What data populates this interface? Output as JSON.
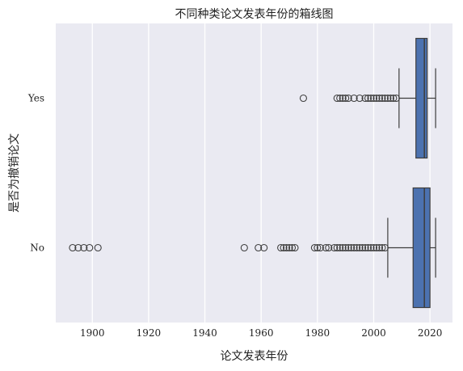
{
  "chart_data": {
    "type": "box",
    "orientation": "horizontal",
    "title": "不同种类论文发表年份的箱线图",
    "xlabel": "论文发表年份",
    "ylabel": "是否为撤销论文",
    "xlim": [
      1887,
      2028
    ],
    "x_ticks": [
      1900,
      1920,
      1940,
      1960,
      1980,
      2000,
      2020
    ],
    "categories": [
      "Yes",
      "No"
    ],
    "grid": true,
    "colors": {
      "plot_background": "#EAEAF2",
      "grid": "#FFFFFF",
      "box_fill": "#4C72B0",
      "line": "#3D3D3D"
    },
    "boxes": [
      {
        "category": "Yes",
        "whisker_low": 2009,
        "q1": 2015,
        "median": 2018,
        "q3": 2019,
        "whisker_high": 2022,
        "outliers": [
          1975,
          1987,
          1988,
          1989,
          1990,
          1991,
          1993,
          1995,
          1997,
          1998,
          1999,
          2000,
          2001,
          2002,
          2003,
          2004,
          2005,
          2006,
          2007,
          2008
        ]
      },
      {
        "category": "No",
        "whisker_low": 2005,
        "q1": 2014,
        "median": 2018,
        "q3": 2020,
        "whisker_high": 2022,
        "outliers": [
          1893,
          1895,
          1897,
          1899,
          1902,
          1954,
          1959,
          1961,
          1967,
          1968,
          1969,
          1970,
          1971,
          1972,
          1979,
          1980,
          1981,
          1983,
          1984,
          1986,
          1987,
          1988,
          1989,
          1990,
          1991,
          1992,
          1993,
          1994,
          1995,
          1996,
          1997,
          1998,
          1999,
          2000,
          2001,
          2002,
          2003,
          2004
        ]
      }
    ]
  }
}
